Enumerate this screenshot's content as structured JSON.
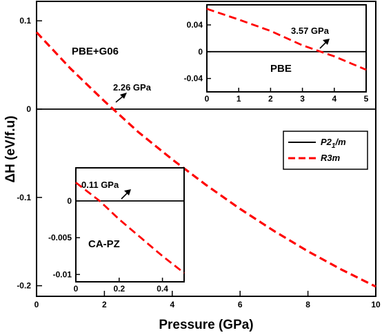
{
  "chart_data": {
    "type": "line",
    "colors": {
      "P21m": "#000000",
      "R3m": "#ff0000"
    },
    "legend": {
      "placement": "right",
      "entries": [
        {
          "key": "P21m",
          "label_main": "P2",
          "label_sub": "1",
          "label_tail": "/m",
          "style": "solid"
        },
        {
          "key": "R3m",
          "label": "R3m",
          "style": "dashed"
        }
      ]
    },
    "main": {
      "xlabel": "Pressure (GPa)",
      "ylabel": "ΔH (eV/f.u)",
      "xlim": [
        0,
        10
      ],
      "ylim": [
        -0.212,
        0.122
      ],
      "xticks": [
        0,
        2,
        4,
        6,
        8,
        10
      ],
      "xtick_labels": [
        "0",
        "2",
        "4",
        "6",
        "8",
        "10"
      ],
      "yticks": [
        -0.2,
        -0.1,
        0,
        0.1
      ],
      "ytick_labels": [
        "-0.2",
        "-0.1",
        "0",
        "0.1"
      ],
      "label": "PBE+G06",
      "annotation": {
        "text": "2.26 GPa",
        "x": 2.26,
        "y": 0
      },
      "series": [
        {
          "key": "P21m",
          "x": [
            0,
            10
          ],
          "y": [
            0,
            0
          ]
        },
        {
          "key": "R3m",
          "x": [
            0,
            1,
            2,
            2.26,
            3,
            4,
            5,
            6,
            7,
            8,
            9,
            10
          ],
          "y": [
            0.087,
            0.046,
            0.009,
            0.0,
            -0.026,
            -0.057,
            -0.086,
            -0.113,
            -0.138,
            -0.161,
            -0.182,
            -0.201
          ]
        }
      ]
    },
    "inset_top": {
      "label": "PBE",
      "xlim": [
        0,
        5
      ],
      "ylim": [
        -0.06,
        0.07
      ],
      "xticks": [
        0,
        1,
        2,
        3,
        4,
        5
      ],
      "xtick_labels": [
        "0",
        "1",
        "2",
        "3",
        "4",
        "5"
      ],
      "yticks": [
        -0.04,
        0,
        0.04
      ],
      "ytick_labels": [
        "-0.04",
        "0",
        "0.04"
      ],
      "annotation": {
        "text": "3.57 GPa",
        "x": 3.57,
        "y": 0
      },
      "series": [
        {
          "key": "P21m",
          "x": [
            0,
            5
          ],
          "y": [
            0,
            0
          ]
        },
        {
          "key": "R3m",
          "x": [
            0,
            1,
            2,
            3,
            3.57,
            4,
            5
          ],
          "y": [
            0.064,
            0.048,
            0.031,
            0.0095,
            0.0,
            -0.007,
            -0.027
          ]
        }
      ]
    },
    "inset_bottom": {
      "label": "CA-PZ",
      "xlim": [
        0,
        0.5
      ],
      "ylim": [
        -0.011,
        0.0045
      ],
      "xticks": [
        0,
        0.2,
        0.4
      ],
      "xtick_labels": [
        "0",
        "0.2",
        "0.4"
      ],
      "yticks": [
        -0.01,
        -0.005,
        0
      ],
      "ytick_labels": [
        "-0.01",
        "-0.005",
        "0"
      ],
      "annotation": {
        "text": "0.11 GPa",
        "x": 0.11,
        "y": 0
      },
      "series": [
        {
          "key": "P21m",
          "x": [
            0,
            0.5
          ],
          "y": [
            0,
            0
          ]
        },
        {
          "key": "R3m",
          "x": [
            0,
            0.11,
            0.2,
            0.3,
            0.4,
            0.5
          ],
          "y": [
            0.0025,
            0.0,
            -0.0025,
            -0.005,
            -0.0075,
            -0.0098
          ]
        }
      ]
    }
  }
}
